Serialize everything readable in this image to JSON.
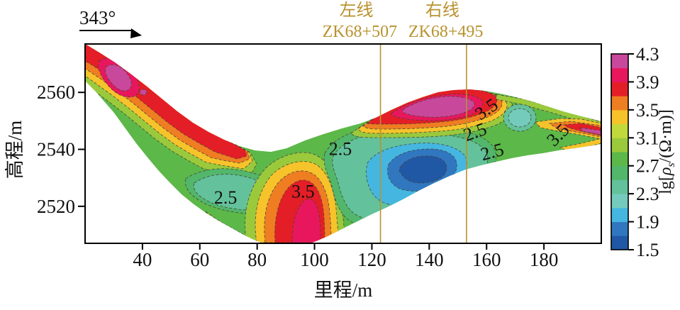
{
  "header": {
    "bearing_label": "343°",
    "survey_lines": [
      {
        "name": "左线",
        "station": "ZK68+507",
        "mileage_m": 123
      },
      {
        "name": "右线",
        "station": "ZK68+495",
        "mileage_m": 153
      }
    ]
  },
  "chart_data": {
    "type": "heatmap",
    "subtype": "filled-contour-resistivity-section",
    "title": "",
    "xlabel": "里程/m",
    "ylabel": "高程/m",
    "xlim": [
      20,
      200
    ],
    "ylim": [
      2507,
      2577
    ],
    "x_ticks": [
      40,
      60,
      80,
      100,
      120,
      140,
      160,
      180
    ],
    "y_ticks": [
      2520,
      2540,
      2560
    ],
    "grid": false,
    "colorbar": {
      "label_text": "lg[ρs/(Ω·m)]",
      "label_prefix": "lg[",
      "label_rho": "ρ",
      "label_sub": "s",
      "label_suffix": "/(Ω·m)]",
      "min": 1.5,
      "max": 4.3,
      "band_step": 0.2,
      "ticks": [
        1.5,
        1.9,
        2.3,
        2.7,
        3.1,
        3.5,
        3.9,
        4.3
      ],
      "colors_low_to_high": [
        "#2158a5",
        "#3077bf",
        "#45b6e0",
        "#74cbbc",
        "#63c29b",
        "#52b66b",
        "#5cb848",
        "#9ac93c",
        "#c2d93c",
        "#f6c32a",
        "#ef7d22",
        "#e41e26",
        "#e8175d",
        "#c8489b"
      ]
    },
    "contour_labels": [
      {
        "text": "2.5",
        "mileage_m": 69,
        "elev_m": 2523,
        "rotate_deg": 0
      },
      {
        "text": "3.5",
        "mileage_m": 96,
        "elev_m": 2525,
        "rotate_deg": 0
      },
      {
        "text": "2.5",
        "mileage_m": 109,
        "elev_m": 2540,
        "rotate_deg": 0
      },
      {
        "text": "3.5",
        "mileage_m": 160,
        "elev_m": 2554,
        "rotate_deg": -35
      },
      {
        "text": "2.5",
        "mileage_m": 156,
        "elev_m": 2546,
        "rotate_deg": -20
      },
      {
        "text": "2.5",
        "mileage_m": 162,
        "elev_m": 2539,
        "rotate_deg": -15
      },
      {
        "text": "3.5",
        "mileage_m": 185,
        "elev_m": 2545,
        "rotate_deg": -45
      }
    ],
    "features": [
      {
        "name": "low-resistivity-anomaly",
        "description": "closed lg ρs < 1.7 low centered near mileage 138 m, elevation ≈ 2534 m"
      },
      {
        "name": "surface-high-resistivity-zone",
        "description": "lg ρs > 4.1 zone along surface, mileage ≈ 128–152 m, elevation ≈ 2550–2560 m"
      },
      {
        "name": "steep-high-resistivity-band",
        "description": "lg ρs > 3.7 band near mileage 95–105 m extending to section bottom"
      },
      {
        "name": "slope-high-resistivity-cover",
        "description": "lg ρs > 3.5 layer following ground surface on left slope, mileage 20–85 m"
      }
    ]
  }
}
